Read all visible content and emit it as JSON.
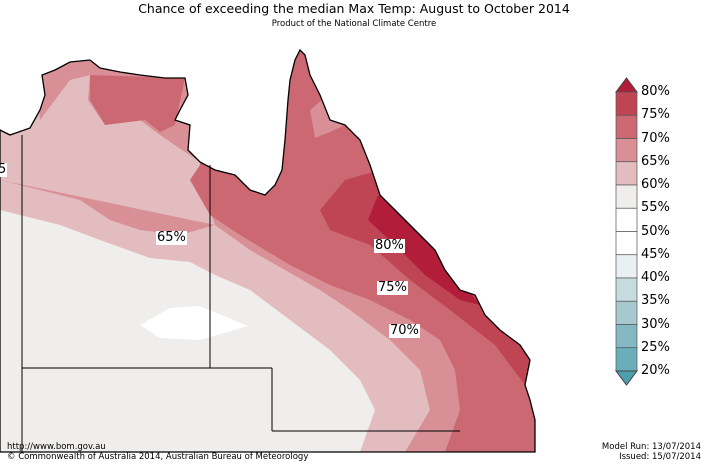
{
  "title": "Chance of exceeding the median Max Temp: August to October 2014",
  "subtitle": "Product of the National Climate Centre",
  "map_labels": [
    "65%",
    "80%",
    "75%",
    "70%",
    "5"
  ],
  "legend": {
    "labels": [
      "80%",
      "75%",
      "70%",
      "65%",
      "60%",
      "55%",
      "50%",
      "45%",
      "40%",
      "35%",
      "30%",
      "25%",
      "20%"
    ],
    "colors": [
      "#b21d3a",
      "#c04554",
      "#cb6872",
      "#d88f96",
      "#e2bcbf",
      "#efeeec",
      "#ffffff",
      "#ffffff",
      "#eaeff1",
      "#c6dbdf",
      "#a8c8cf",
      "#86b8c4",
      "#6aaebc",
      "#4d9fb0"
    ]
  },
  "footer": {
    "url": "http://www.bom.gov.au",
    "copyright": "©  Commonwealth of Australia 2014, Australian Bureau of Meteorology",
    "model_run": "Model Run: 13/07/2014",
    "issued": "Issued: 15/07/2014"
  }
}
